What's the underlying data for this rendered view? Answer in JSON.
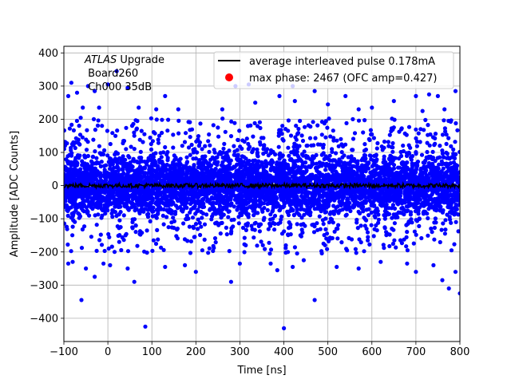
{
  "chart_data": {
    "type": "scatter",
    "title": "",
    "xlabel": "Time [ns]",
    "ylabel": "Amplitude [ADC Counts]",
    "xlim": [
      -100,
      800
    ],
    "ylim": [
      -470,
      420
    ],
    "xticks": [
      -100,
      0,
      100,
      200,
      300,
      400,
      500,
      600,
      700,
      800
    ],
    "yticks": [
      -400,
      -300,
      -200,
      -100,
      0,
      100,
      200,
      300,
      400
    ],
    "grid": true,
    "legend_position": "top-right",
    "annotation": {
      "experiment": "ATLAS",
      "experiment_suffix": " Upgrade",
      "board": " Board260",
      "channel": " Ch000 35dB"
    },
    "colors": {
      "scatter": "#0000ff",
      "line": "#000000",
      "max_marker": "#ff0000",
      "grid": "#b0b0b0"
    },
    "series": [
      {
        "name": "average interleaved pulse 0.178mA",
        "type": "line",
        "color": "#000000",
        "description_values": "flat line near 0 with small jitter (about ±8 ADC counts) from -100 to 800 ns",
        "amplitude_range": [
          -8,
          8
        ]
      },
      {
        "name": "max phase: 2467 (OFC amp=0.427)",
        "type": "scatter",
        "color": "#ff0000"
      },
      {
        "name": "",
        "type": "scatter",
        "color": "#0000ff",
        "dense_band_range": [
          -110,
          110
        ],
        "outliers": [
          {
            "x": -90,
            "y": 270
          },
          {
            "x": -83,
            "y": 310
          },
          {
            "x": -70,
            "y": 280
          },
          {
            "x": -57,
            "y": 235
          },
          {
            "x": -45,
            "y": 300
          },
          {
            "x": -30,
            "y": 285
          },
          {
            "x": -20,
            "y": 235
          },
          {
            "x": 0,
            "y": 305
          },
          {
            "x": 20,
            "y": 345
          },
          {
            "x": 45,
            "y": 295
          },
          {
            "x": 70,
            "y": 235
          },
          {
            "x": 110,
            "y": 230
          },
          {
            "x": 130,
            "y": 270
          },
          {
            "x": 160,
            "y": 230
          },
          {
            "x": 260,
            "y": 230
          },
          {
            "x": 290,
            "y": 300
          },
          {
            "x": 320,
            "y": 305
          },
          {
            "x": 335,
            "y": 250
          },
          {
            "x": 390,
            "y": 270
          },
          {
            "x": 420,
            "y": 300
          },
          {
            "x": 425,
            "y": 255
          },
          {
            "x": 470,
            "y": 285
          },
          {
            "x": 500,
            "y": 245
          },
          {
            "x": 540,
            "y": 270
          },
          {
            "x": 570,
            "y": 230
          },
          {
            "x": 600,
            "y": 235
          },
          {
            "x": 650,
            "y": 255
          },
          {
            "x": 700,
            "y": 270
          },
          {
            "x": 715,
            "y": 225
          },
          {
            "x": 730,
            "y": 275
          },
          {
            "x": 750,
            "y": 270
          },
          {
            "x": 765,
            "y": 230
          },
          {
            "x": 790,
            "y": 285
          },
          {
            "x": -90,
            "y": -235
          },
          {
            "x": -80,
            "y": -230
          },
          {
            "x": -60,
            "y": -345
          },
          {
            "x": -50,
            "y": -250
          },
          {
            "x": -30,
            "y": -275
          },
          {
            "x": -10,
            "y": -235
          },
          {
            "x": 5,
            "y": -240
          },
          {
            "x": 45,
            "y": -250
          },
          {
            "x": 60,
            "y": -290
          },
          {
            "x": 85,
            "y": -425
          },
          {
            "x": 130,
            "y": -245
          },
          {
            "x": 175,
            "y": -240
          },
          {
            "x": 200,
            "y": -260
          },
          {
            "x": 280,
            "y": -290
          },
          {
            "x": 300,
            "y": -235
          },
          {
            "x": 370,
            "y": -235
          },
          {
            "x": 385,
            "y": -255
          },
          {
            "x": 400,
            "y": -430
          },
          {
            "x": 420,
            "y": -245
          },
          {
            "x": 445,
            "y": -225
          },
          {
            "x": 470,
            "y": -345
          },
          {
            "x": 520,
            "y": -245
          },
          {
            "x": 570,
            "y": -250
          },
          {
            "x": 620,
            "y": -230
          },
          {
            "x": 680,
            "y": -235
          },
          {
            "x": 700,
            "y": -260
          },
          {
            "x": 740,
            "y": -240
          },
          {
            "x": 760,
            "y": -285
          },
          {
            "x": 775,
            "y": -310
          },
          {
            "x": 790,
            "y": -260
          },
          {
            "x": 800,
            "y": -325
          }
        ]
      }
    ]
  }
}
